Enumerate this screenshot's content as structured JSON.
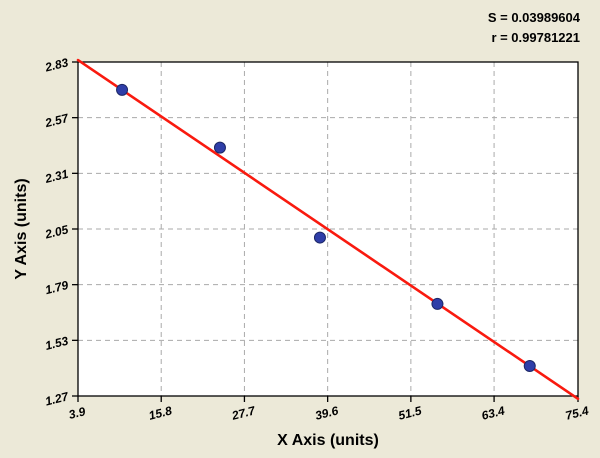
{
  "stats": {
    "s_label": "S = 0.03989604",
    "r_label": "r = 0.99781221"
  },
  "chart_data": {
    "type": "scatter",
    "title": "",
    "xlabel": "X Axis (units)",
    "ylabel": "Y Axis (units)",
    "xlim": [
      3.9,
      75.4
    ],
    "ylim": [
      1.27,
      2.83
    ],
    "x_ticks": [
      3.9,
      15.8,
      27.7,
      39.6,
      51.5,
      63.4,
      75.4
    ],
    "y_ticks": [
      1.27,
      1.53,
      1.79,
      2.05,
      2.31,
      2.57,
      2.83
    ],
    "grid": "dashed",
    "legend": "none",
    "points": [
      {
        "x": 10.2,
        "y": 2.7
      },
      {
        "x": 24.2,
        "y": 2.43
      },
      {
        "x": 38.5,
        "y": 2.01
      },
      {
        "x": 55.3,
        "y": 1.7
      },
      {
        "x": 68.5,
        "y": 1.41
      }
    ],
    "fit_line": {
      "x1": 3.9,
      "y1": 2.839,
      "x2": 75.4,
      "y2": 1.257
    },
    "colors": {
      "background": "#ece9d8",
      "plot_bg": "#ffffff",
      "point": "#2f3ea8",
      "point_edge": "#1c2766",
      "line": "#f91a0f",
      "grid": "#aaaaaa",
      "axis": "#000000"
    }
  }
}
